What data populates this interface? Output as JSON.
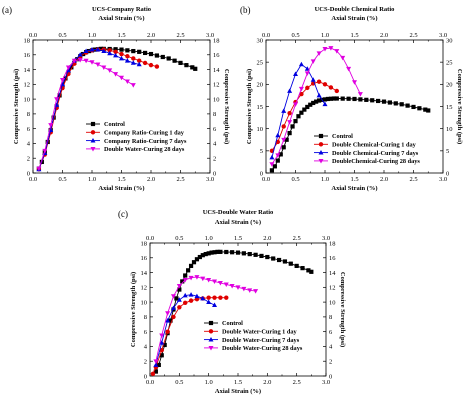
{
  "chart_data": [
    {
      "type": "scatter",
      "panel_label": "(a)",
      "title": "UCS-Company Ratio",
      "top_xlabel": "Axial Strain (%)",
      "xlabel": "Axial Strain (%)",
      "ylabel": "Compressive Strength (psi)",
      "xlim": [
        0.0,
        3.0
      ],
      "ylim": [
        0,
        18
      ],
      "x_ticks": [
        "0.0",
        "0.5",
        "1.0",
        "1.5",
        "2.0",
        "2.5",
        "3.0"
      ],
      "y_ticks": [
        "0",
        "2",
        "4",
        "6",
        "8",
        "10",
        "12",
        "14",
        "16",
        "18"
      ],
      "legend_position": "bottom-right",
      "series": [
        {
          "name": "Control",
          "color": "#000000",
          "marker": "square",
          "x": [
            0.1,
            0.15,
            0.2,
            0.25,
            0.3,
            0.35,
            0.4,
            0.45,
            0.5,
            0.55,
            0.6,
            0.65,
            0.7,
            0.75,
            0.8,
            0.85,
            0.9,
            0.95,
            1.0,
            1.05,
            1.1,
            1.15,
            1.2,
            1.3,
            1.4,
            1.5,
            1.6,
            1.7,
            1.8,
            1.9,
            2.0,
            2.1,
            2.2,
            2.3,
            2.4,
            2.5,
            2.6,
            2.7,
            2.75
          ],
          "y": [
            0.6,
            1.5,
            2.8,
            4.2,
            5.8,
            7.5,
            9.0,
            10.5,
            11.7,
            12.8,
            13.6,
            14.3,
            14.9,
            15.4,
            15.8,
            16.1,
            16.35,
            16.5,
            16.6,
            16.7,
            16.75,
            16.8,
            16.8,
            16.78,
            16.75,
            16.7,
            16.6,
            16.5,
            16.4,
            16.25,
            16.1,
            15.9,
            15.7,
            15.5,
            15.2,
            14.9,
            14.6,
            14.3,
            14.1
          ]
        },
        {
          "name": "Company Ratio-Curing 1 day",
          "color": "#e00000",
          "marker": "circle",
          "x": [
            0.1,
            0.2,
            0.3,
            0.4,
            0.5,
            0.6,
            0.7,
            0.8,
            0.9,
            1.0,
            1.1,
            1.2,
            1.3,
            1.4,
            1.5,
            1.6,
            1.7,
            1.8,
            1.9,
            2.0,
            2.1
          ],
          "y": [
            0.5,
            2.5,
            5.5,
            8.8,
            11.5,
            13.4,
            14.8,
            15.8,
            16.3,
            16.6,
            16.7,
            16.7,
            16.6,
            16.4,
            16.1,
            15.8,
            15.5,
            15.2,
            14.9,
            14.6,
            14.4
          ]
        },
        {
          "name": "Company Ratio-Curing 7 days",
          "color": "#0000e0",
          "marker": "triangle",
          "x": [
            0.1,
            0.2,
            0.3,
            0.4,
            0.5,
            0.6,
            0.7,
            0.8,
            0.9,
            1.0,
            1.1,
            1.2,
            1.3,
            1.4,
            1.5,
            1.6,
            1.7,
            1.8
          ],
          "y": [
            0.5,
            2.7,
            5.8,
            9.2,
            12.0,
            13.9,
            15.2,
            16.0,
            16.5,
            16.7,
            16.7,
            16.5,
            16.2,
            15.9,
            15.5,
            15.2,
            14.9,
            14.7
          ]
        },
        {
          "name": "Double Water-Curing 28 days",
          "color": "#e000e0",
          "marker": "triangle-down",
          "x": [
            0.1,
            0.2,
            0.3,
            0.4,
            0.5,
            0.6,
            0.7,
            0.8,
            0.9,
            1.0,
            1.1,
            1.2,
            1.3,
            1.4,
            1.5,
            1.6,
            1.7
          ],
          "y": [
            0.6,
            3.0,
            6.5,
            10.0,
            12.6,
            14.3,
            15.2,
            15.3,
            15.2,
            15.0,
            14.7,
            14.3,
            13.9,
            13.4,
            12.9,
            12.4,
            11.9
          ]
        }
      ]
    },
    {
      "type": "scatter",
      "panel_label": "(b)",
      "title": "UCS-Double Chemical Ratio",
      "top_xlabel": "Axial Strain (%)",
      "xlabel": "Axial Strain (%)",
      "ylabel": "Compressive Strength (psi)",
      "xlim": [
        0.0,
        3.0
      ],
      "ylim": [
        0,
        30
      ],
      "x_ticks": [
        "0.0",
        "0.5",
        "1.0",
        "1.5",
        "2.0",
        "2.5",
        "3.0"
      ],
      "y_ticks": [
        "0",
        "5",
        "10",
        "15",
        "20",
        "25",
        "30"
      ],
      "legend_position": "bottom-left",
      "series": [
        {
          "name": "Control",
          "color": "#000000",
          "marker": "square",
          "x": [
            0.1,
            0.15,
            0.2,
            0.25,
            0.3,
            0.35,
            0.4,
            0.45,
            0.5,
            0.55,
            0.6,
            0.65,
            0.7,
            0.75,
            0.8,
            0.85,
            0.9,
            0.95,
            1.0,
            1.05,
            1.1,
            1.15,
            1.2,
            1.3,
            1.4,
            1.5,
            1.6,
            1.7,
            1.8,
            1.9,
            2.0,
            2.1,
            2.2,
            2.3,
            2.4,
            2.5,
            2.6,
            2.7,
            2.75
          ],
          "y": [
            0.6,
            1.5,
            2.8,
            4.2,
            5.8,
            7.5,
            9.0,
            10.5,
            11.7,
            12.8,
            13.6,
            14.3,
            14.9,
            15.4,
            15.8,
            16.1,
            16.35,
            16.5,
            16.6,
            16.7,
            16.75,
            16.8,
            16.8,
            16.78,
            16.75,
            16.7,
            16.6,
            16.5,
            16.4,
            16.25,
            16.1,
            15.9,
            15.7,
            15.5,
            15.2,
            14.9,
            14.6,
            14.3,
            14.1
          ]
        },
        {
          "name": "Double Chemical-Curing 1 day",
          "color": "#e00000",
          "marker": "circle",
          "x": [
            0.1,
            0.2,
            0.3,
            0.4,
            0.5,
            0.6,
            0.7,
            0.8,
            0.9,
            1.0,
            1.1,
            1.2
          ],
          "y": [
            5.0,
            7.0,
            10.5,
            13.5,
            16.0,
            17.8,
            19.2,
            20.2,
            20.6,
            20.0,
            19.3,
            18.5
          ]
        },
        {
          "name": "Double Chemical-Curing 7 days",
          "color": "#0000e0",
          "marker": "triangle",
          "x": [
            0.1,
            0.2,
            0.3,
            0.4,
            0.5,
            0.6,
            0.7,
            0.8,
            0.9,
            1.0
          ],
          "y": [
            3.5,
            8.5,
            14.0,
            18.5,
            22.3,
            24.5,
            23.5,
            21.0,
            17.5,
            15.5
          ]
        },
        {
          "name": "DoubleChemical-Curing 28 days",
          "color": "#e000e0",
          "marker": "triangle-down",
          "x": [
            0.1,
            0.2,
            0.3,
            0.4,
            0.5,
            0.6,
            0.7,
            0.8,
            0.9,
            1.0,
            1.1,
            1.2,
            1.3,
            1.4,
            1.5,
            1.6
          ],
          "y": [
            2.0,
            4.0,
            7.5,
            11.5,
            15.5,
            19.0,
            22.5,
            25.2,
            27.0,
            28.0,
            28.2,
            27.5,
            26.0,
            23.5,
            20.5,
            17.8
          ]
        }
      ]
    },
    {
      "type": "scatter",
      "panel_label": "(c)",
      "title": "UCS-Double Water Ratio",
      "top_xlabel": "Axial Strain (%)",
      "xlabel": "Axial Strain (%)",
      "ylabel": "Compressive Strength (psi)",
      "xlim": [
        0.0,
        3.0
      ],
      "ylim": [
        0,
        18
      ],
      "x_ticks": [
        "0.0",
        "0.5",
        "1.0",
        "1.5",
        "2.0",
        "2.5",
        "3.0"
      ],
      "y_ticks": [
        "0",
        "2",
        "4",
        "6",
        "8",
        "10",
        "12",
        "14",
        "16",
        "18"
      ],
      "legend_position": "bottom-right",
      "series": [
        {
          "name": "Control",
          "color": "#000000",
          "marker": "square",
          "x": [
            0.1,
            0.15,
            0.2,
            0.25,
            0.3,
            0.35,
            0.4,
            0.45,
            0.5,
            0.55,
            0.6,
            0.65,
            0.7,
            0.75,
            0.8,
            0.85,
            0.9,
            0.95,
            1.0,
            1.05,
            1.1,
            1.15,
            1.2,
            1.3,
            1.4,
            1.5,
            1.6,
            1.7,
            1.8,
            1.9,
            2.0,
            2.1,
            2.2,
            2.3,
            2.4,
            2.5,
            2.6,
            2.7,
            2.75
          ],
          "y": [
            0.6,
            1.5,
            2.8,
            4.2,
            5.8,
            7.5,
            9.0,
            10.5,
            11.7,
            12.8,
            13.6,
            14.3,
            14.9,
            15.4,
            15.8,
            16.1,
            16.35,
            16.5,
            16.6,
            16.7,
            16.75,
            16.8,
            16.8,
            16.78,
            16.75,
            16.7,
            16.6,
            16.5,
            16.4,
            16.25,
            16.1,
            15.9,
            15.7,
            15.5,
            15.2,
            14.9,
            14.6,
            14.3,
            14.1
          ]
        },
        {
          "name": "Double Water-Curing 1 day",
          "color": "#e00000",
          "marker": "circle",
          "x": [
            0.05,
            0.1,
            0.2,
            0.3,
            0.4,
            0.5,
            0.6,
            0.7,
            0.8,
            0.9,
            1.0,
            1.1,
            1.2,
            1.3
          ],
          "y": [
            0.3,
            1.2,
            3.5,
            6.0,
            8.0,
            9.3,
            9.9,
            10.2,
            10.4,
            10.5,
            10.6,
            10.6,
            10.6,
            10.6
          ]
        },
        {
          "name": "Double Water-Curing 7 days",
          "color": "#0000e0",
          "marker": "triangle",
          "x": [
            0.1,
            0.2,
            0.3,
            0.4,
            0.5,
            0.6,
            0.7,
            0.8,
            0.9,
            1.0,
            1.1
          ],
          "y": [
            1.5,
            4.5,
            7.5,
            9.2,
            10.3,
            10.9,
            11.0,
            10.8,
            10.5,
            10.0,
            9.6
          ]
        },
        {
          "name": "Double Water-Curing 28 days",
          "color": "#e000e0",
          "marker": "triangle-down",
          "x": [
            0.1,
            0.2,
            0.3,
            0.4,
            0.5,
            0.6,
            0.7,
            0.8,
            0.9,
            1.0,
            1.1,
            1.2,
            1.3,
            1.4,
            1.5,
            1.6,
            1.7,
            1.8
          ],
          "y": [
            2.0,
            5.5,
            8.5,
            10.8,
            12.2,
            13.0,
            13.3,
            13.4,
            13.2,
            13.0,
            12.8,
            12.6,
            12.4,
            12.2,
            12.0,
            11.8,
            11.6,
            11.5
          ]
        }
      ]
    }
  ]
}
